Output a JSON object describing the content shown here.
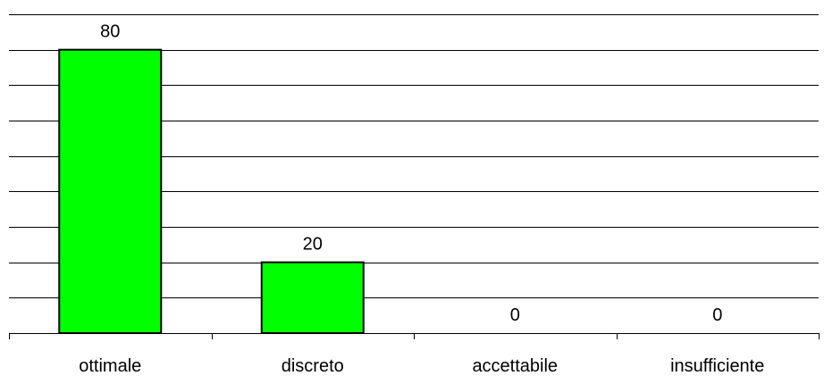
{
  "chart_data": {
    "type": "bar",
    "title": "",
    "xlabel": "",
    "ylabel": "",
    "categories": [
      "ottimale",
      "discreto",
      "accettabile",
      "insufficiente"
    ],
    "values": [
      80,
      20,
      0,
      0
    ],
    "data_labels": [
      "80",
      "20",
      "0",
      "0"
    ],
    "ylim": [
      0,
      90
    ],
    "grid": true,
    "legend": "none",
    "bar_color": "#00ff00",
    "bar_border_color": "#000000",
    "grid_color": "#000000"
  }
}
